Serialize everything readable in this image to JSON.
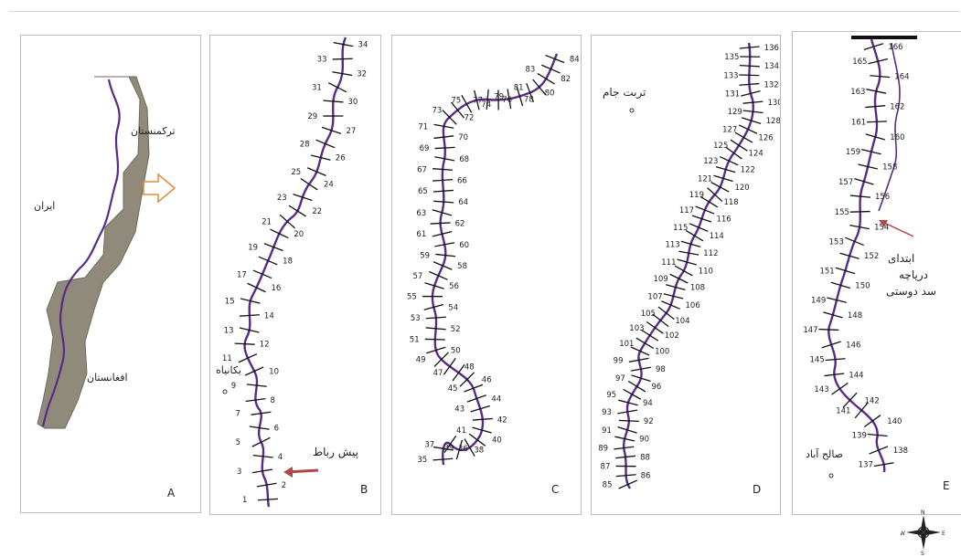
{
  "colors": {
    "river": "#5a2a86",
    "cross": "#111111",
    "arrow_red": "#b0474b",
    "arrow_orange": "#e08a3c"
  },
  "panels": {
    "A": {
      "letter": "A",
      "label_turkmenistan": "ترکمنستان",
      "label_iran": "ایران",
      "label_afghanistan": "افغانستان"
    },
    "B": {
      "letter": "B",
      "label_top_town": "یکانیاه",
      "label_start": "پیش رباط",
      "numbers": [
        "34",
        "33",
        "32",
        "31",
        "30",
        "29",
        "27",
        "28",
        "26",
        "25",
        "24",
        "23",
        "22",
        "21",
        "20",
        "19",
        "18",
        "17",
        "16",
        "15",
        "14",
        "13",
        "12",
        "11",
        "10",
        "9",
        "8",
        "7",
        "6",
        "5",
        "4",
        "3",
        "2",
        "1"
      ]
    },
    "C": {
      "letter": "C",
      "numbers": [
        "84",
        "83",
        "82",
        "81",
        "80",
        "79",
        "78",
        "77",
        "76",
        "75",
        "74",
        "73",
        "72",
        "71",
        "70",
        "69",
        "68",
        "67",
        "66",
        "65",
        "64",
        "63",
        "62",
        "61",
        "60",
        "59",
        "58",
        "57",
        "56",
        "55",
        "54",
        "53",
        "52",
        "51",
        "50",
        "49",
        "48",
        "47",
        "46",
        "45",
        "44",
        "43",
        "42",
        "41",
        "40",
        "39",
        "38",
        "37",
        "36",
        "35"
      ]
    },
    "D": {
      "letter": "D",
      "label_town": "تربت جام",
      "numbers": [
        "136",
        "135",
        "134",
        "133",
        "132",
        "131",
        "130",
        "129",
        "128",
        "127",
        "126",
        "125",
        "124",
        "123",
        "122",
        "121",
        "120",
        "119",
        "118",
        "117",
        "116",
        "115",
        "114",
        "113",
        "112",
        "111",
        "110",
        "109",
        "108",
        "107",
        "106",
        "105",
        "104",
        "103",
        "102",
        "101",
        "100",
        "99",
        "98",
        "97",
        "96",
        "95",
        "94",
        "93",
        "92",
        "91",
        "90",
        "89",
        "88",
        "87",
        "86",
        "85"
      ]
    },
    "E": {
      "letter": "E",
      "label_dam_line1": "ابتدای",
      "label_dam_line2": "دریاچه",
      "label_dam_line3": "سد دوستی",
      "label_town": "صالح آباد",
      "numbers": [
        "166",
        "165",
        "164",
        "163",
        "162",
        "161",
        "160",
        "159",
        "158",
        "157",
        "156",
        "155",
        "154",
        "153",
        "152",
        "151",
        "150",
        "149",
        "148",
        "147",
        "146",
        "145",
        "144",
        "143",
        "142",
        "141",
        "140",
        "139",
        "138",
        "137"
      ]
    }
  },
  "compass": {
    "n": "N",
    "s": "S",
    "e": "E",
    "w": "W"
  }
}
